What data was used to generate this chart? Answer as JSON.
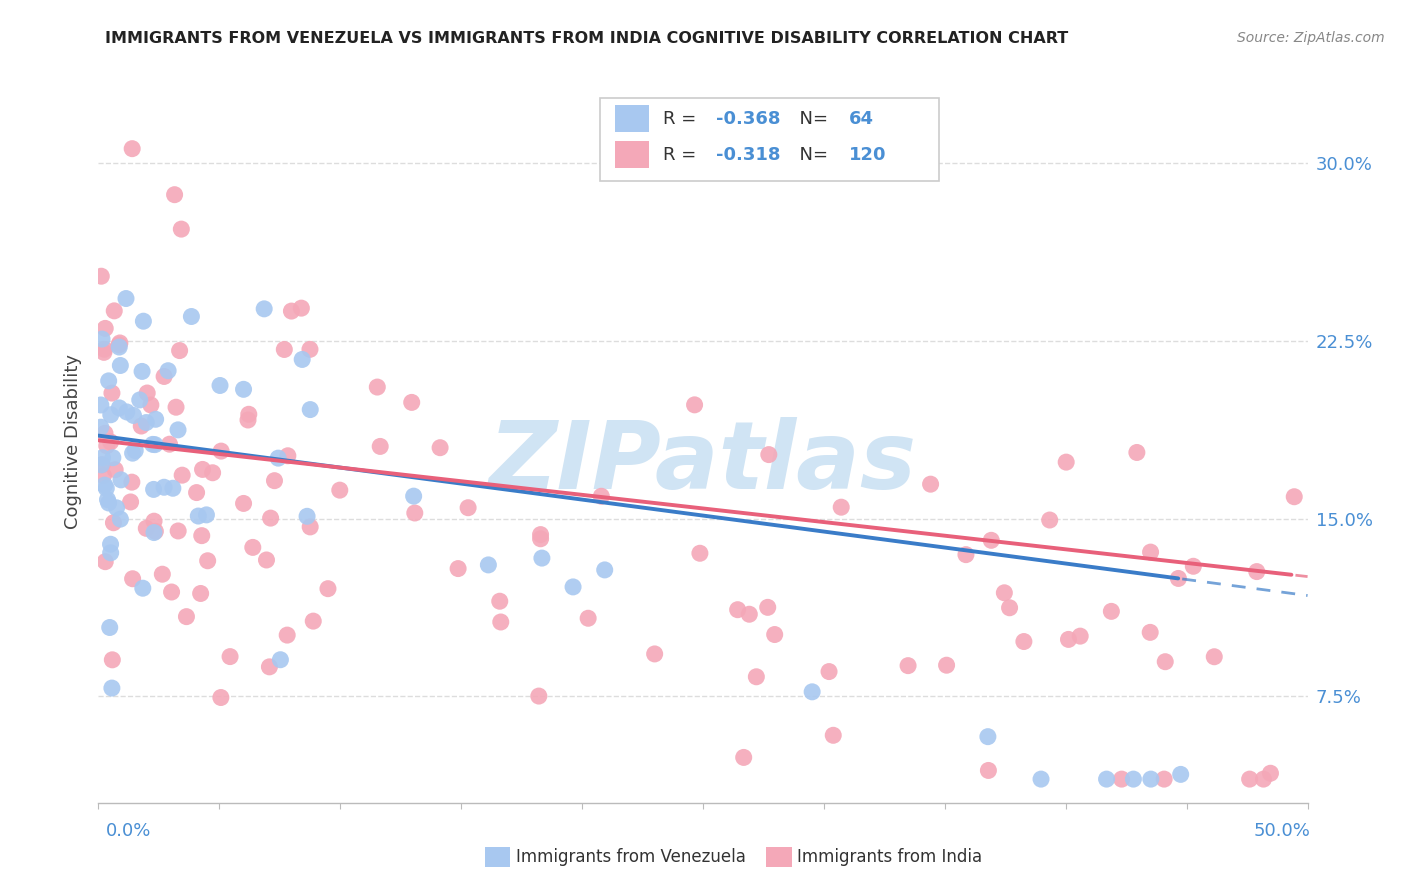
{
  "title": "IMMIGRANTS FROM VENEZUELA VS IMMIGRANTS FROM INDIA COGNITIVE DISABILITY CORRELATION CHART",
  "source": "Source: ZipAtlas.com",
  "ylabel": "Cognitive Disability",
  "ylabel_right_ticks": [
    "7.5%",
    "15.0%",
    "22.5%",
    "30.0%"
  ],
  "ylabel_right_vals": [
    0.075,
    0.15,
    0.225,
    0.3
  ],
  "xlim": [
    0.0,
    0.5
  ],
  "ylim": [
    0.03,
    0.335
  ],
  "R_venezuela": -0.368,
  "N_venezuela": 64,
  "R_india": -0.318,
  "N_india": 120,
  "color_venezuela": "#A8C8F0",
  "color_india": "#F4A8B8",
  "color_trend_venezuela": "#3A7CC8",
  "color_trend_india": "#E8607A",
  "watermark_color": "#D0E4F4",
  "grid_color": "#DDDDDD",
  "grid_style": "--"
}
